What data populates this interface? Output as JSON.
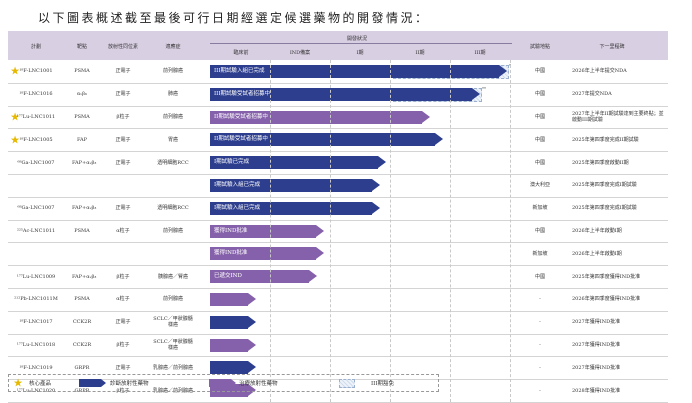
{
  "title": "以下圖表概述截至最後可行日期經選定候選藥物的開發情況：",
  "header": {
    "plan": "計劃",
    "target": "靶點",
    "isotope": "放射性同位素",
    "indication": "適應症",
    "dev_status": "開發狀況",
    "preclinical": "臨床前",
    "ind": "IND備案",
    "phase1": "I期",
    "phase2": "II期",
    "phase3": "III期",
    "region": "試驗地點",
    "next": "下一里程碑"
  },
  "rows": [
    {
      "star": true,
      "program": "¹⁸F-LNC1001",
      "target": "PSMA",
      "isotope": "正電子",
      "indication": "前列腺癌",
      "bar": {
        "color": "blue",
        "label": "III期試驗入組已完成",
        "end": 507
      },
      "hatch": {
        "start": 393,
        "end": 507
      },
      "mark": "*",
      "region": "中國",
      "milestone": "2026年上半年提交NDA"
    },
    {
      "star": false,
      "program": "¹⁸F-LNC1016",
      "target": "αᵥβ₆",
      "isotope": "正電子",
      "indication": "肺癌",
      "bar": {
        "color": "blue",
        "label": "III期試驗受試者招募中",
        "end": 480
      },
      "hatch": {
        "start": 393,
        "end": 480
      },
      "mark": "**",
      "region": "中國",
      "milestone": "2027年提交NDA"
    },
    {
      "star": true,
      "program": "¹⁷⁷Lu-LNC1011",
      "target": "PSMA",
      "isotope": "β粒子",
      "indication": "前列腺癌",
      "bar": {
        "color": "purple",
        "label": "II期試驗受試者招募中",
        "end": 430
      },
      "region": "中國",
      "milestone": "2027年上半年II期試驗達到主要終點；並啟動III期試驗"
    },
    {
      "star": true,
      "program": "¹⁸F-LNC1005",
      "target": "FAP",
      "isotope": "正電子",
      "indication": "胃癌",
      "bar": {
        "color": "blue",
        "label": "II期試驗受試者招募中",
        "end": 443
      },
      "region": "中國",
      "milestone": "2025年第四季度完成II期試驗"
    },
    {
      "star": false,
      "program": "⁶⁸Ga-LNC1007",
      "target": "FAP+αᵥβ₃",
      "isotope": "正電子",
      "indication": "透明細胞RCC",
      "bar": {
        "color": "blue",
        "label": "I期試驗已完成",
        "end": 386
      },
      "region": "中國",
      "milestone": "2025年第四季度啟動II期"
    },
    {
      "star": false,
      "program": "",
      "target": "",
      "isotope": "",
      "indication": "",
      "bar": {
        "color": "blue",
        "label": "I期試驗入組已完成",
        "end": 380
      },
      "region": "澳大利亞",
      "milestone": "2025年第四季度完成I期試驗"
    },
    {
      "star": false,
      "program": "⁶⁸Ga-LNC1007",
      "target": "FAP+αᵥβ₃",
      "isotope": "正電子",
      "indication": "透明細胞RCC",
      "bar": {
        "color": "blue",
        "label": "I期試驗入組已完成",
        "end": 380
      },
      "region": "新加坡",
      "milestone": "2025年第四季度完成I期試驗"
    },
    {
      "star": false,
      "program": "²²⁵Ac-LNC1011",
      "target": "PSMA",
      "isotope": "α粒子",
      "indication": "前列腺癌",
      "bar": {
        "color": "purple",
        "label": "獲得IND批准",
        "end": 324
      },
      "region": "中國",
      "milestone": "2026年上半年啟動I期"
    },
    {
      "star": false,
      "program": "",
      "target": "",
      "isotope": "",
      "indication": "",
      "bar": {
        "color": "purple",
        "label": "獲得IND批准",
        "end": 324
      },
      "region": "新加坡",
      "milestone": "2026年上半年啟動I期"
    },
    {
      "star": false,
      "program": "¹⁷⁷Lu-LNC1009",
      "target": "FAP+αᵥβ₃",
      "isotope": "β粒子",
      "indication": "胰腺癌／腎癌",
      "bar": {
        "color": "purple",
        "label": "已遞交IND",
        "end": 317
      },
      "region": "中國",
      "milestone": "2025年第四季度獲得IND批准"
    },
    {
      "star": false,
      "program": "²¹²Pb-LNC1011M",
      "target": "PSMA",
      "isotope": "α粒子",
      "indication": "前列腺癌",
      "bar": {
        "color": "purple",
        "label": "",
        "end": 256
      },
      "region": "-",
      "milestone": "2026年第四季度獲得IND批准"
    },
    {
      "star": false,
      "program": "¹⁸F-LNC1017",
      "target": "CCK2R",
      "isotope": "正電子",
      "indication": "SCLC／甲狀腺髓樣癌",
      "bar": {
        "color": "blue",
        "label": "",
        "end": 256
      },
      "region": "-",
      "milestone": "2027年獲得IND批准"
    },
    {
      "star": false,
      "program": "¹⁷⁷Lu-LNC1018",
      "target": "CCK2R",
      "isotope": "β粒子",
      "indication": "SCLC／甲狀腺髓樣癌",
      "bar": {
        "color": "purple",
        "label": "",
        "end": 256
      },
      "region": "-",
      "milestone": "2027年獲得IND批准"
    },
    {
      "star": false,
      "program": "¹⁸F-LNC1019",
      "target": "GRPR",
      "isotope": "正電子",
      "indication": "乳腺癌／前列腺癌",
      "bar": {
        "color": "blue",
        "label": "",
        "end": 256
      },
      "region": "-",
      "milestone": "2027年獲得IND批准"
    },
    {
      "star": false,
      "program": "¹⁷⁷Lu-LNC1020",
      "target": "GRPR",
      "isotope": "β粒子",
      "indication": "乳腺癌／前列腺癌",
      "bar": {
        "color": "purple",
        "label": "",
        "end": 256
      },
      "region": "-",
      "milestone": "2028年獲得IND批准"
    }
  ],
  "legend": {
    "core": "核心產品",
    "diagnostic": "診斷放射性藥物",
    "therapeutic": "治療放射性藥物",
    "exempt": "III期豁免"
  },
  "colors": {
    "blue": "#2d3e8e",
    "purple": "#8661ab",
    "star": "#e6b800",
    "header": "#d9cfe3"
  }
}
